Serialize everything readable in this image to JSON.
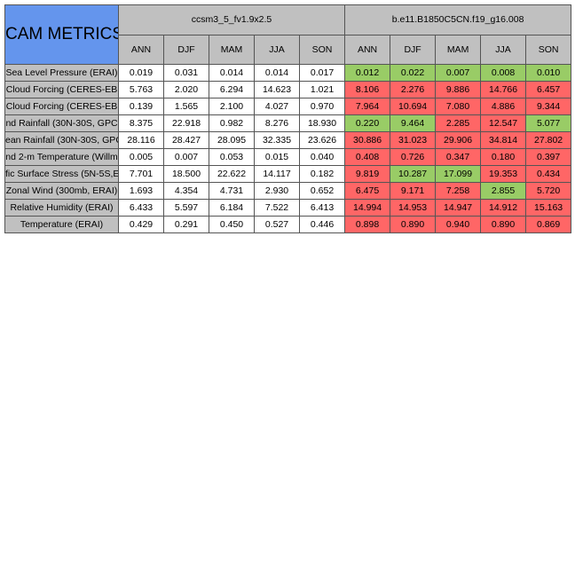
{
  "title": "CAM METRICS",
  "cases": [
    "ccsm3_5_fv1.9x2.5",
    "b.e11.B1850C5CN.f19_g16.008"
  ],
  "seasons": [
    "ANN",
    "DJF",
    "MAM",
    "JJA",
    "SON"
  ],
  "colors": {
    "title_bg": "#6495ed",
    "header_bg": "#c0c0c0",
    "better": "#99cc66",
    "worse": "#ff6666"
  },
  "rows": [
    {
      "label": "Sea Level Pressure (ERAI)",
      "a": [
        "0.019",
        "0.031",
        "0.014",
        "0.014",
        "0.017"
      ],
      "b": [
        "0.012",
        "0.022",
        "0.007",
        "0.008",
        "0.010"
      ],
      "status": [
        "good",
        "good",
        "good",
        "good",
        "good"
      ]
    },
    {
      "label": "Cloud Forcing (CERES-EB",
      "a": [
        "5.763",
        "2.020",
        "6.294",
        "14.623",
        "1.021"
      ],
      "b": [
        "8.106",
        "2.276",
        "9.886",
        "14.766",
        "6.457"
      ],
      "status": [
        "bad",
        "bad",
        "bad",
        "bad",
        "bad"
      ]
    },
    {
      "label": "Cloud Forcing (CERES-EB",
      "a": [
        "0.139",
        "1.565",
        "2.100",
        "4.027",
        "0.970"
      ],
      "b": [
        "7.964",
        "10.694",
        "7.080",
        "4.886",
        "9.344"
      ],
      "status": [
        "bad",
        "bad",
        "bad",
        "bad",
        "bad"
      ]
    },
    {
      "label": "nd Rainfall (30N-30S, GPC",
      "a": [
        "8.375",
        "22.918",
        "0.982",
        "8.276",
        "18.930"
      ],
      "b": [
        "0.220",
        "9.464",
        "2.285",
        "12.547",
        "5.077"
      ],
      "status": [
        "good",
        "good",
        "bad",
        "bad",
        "good"
      ]
    },
    {
      "label": "ean Rainfall (30N-30S, GPC",
      "a": [
        "28.116",
        "28.427",
        "28.095",
        "32.335",
        "23.626"
      ],
      "b": [
        "30.886",
        "31.023",
        "29.906",
        "34.814",
        "27.802"
      ],
      "status": [
        "bad",
        "bad",
        "bad",
        "bad",
        "bad"
      ]
    },
    {
      "label": "nd 2-m Temperature (Willm",
      "a": [
        "0.005",
        "0.007",
        "0.053",
        "0.015",
        "0.040"
      ],
      "b": [
        "0.408",
        "0.726",
        "0.347",
        "0.180",
        "0.397"
      ],
      "status": [
        "bad",
        "bad",
        "bad",
        "bad",
        "bad"
      ]
    },
    {
      "label": "fic Surface Stress (5N-5S,E",
      "a": [
        "7.701",
        "18.500",
        "22.622",
        "14.117",
        "0.182"
      ],
      "b": [
        "9.819",
        "10.287",
        "17.099",
        "19.353",
        "0.434"
      ],
      "status": [
        "bad",
        "good",
        "good",
        "bad",
        "bad"
      ]
    },
    {
      "label": "Zonal Wind (300mb, ERAI)",
      "a": [
        "1.693",
        "4.354",
        "4.731",
        "2.930",
        "0.652"
      ],
      "b": [
        "6.475",
        "9.171",
        "7.258",
        "2.855",
        "5.720"
      ],
      "status": [
        "bad",
        "bad",
        "bad",
        "good",
        "bad"
      ]
    },
    {
      "label": "Relative Humidity (ERAI)",
      "a": [
        "6.433",
        "5.597",
        "6.184",
        "7.522",
        "6.413"
      ],
      "b": [
        "14.994",
        "14.953",
        "14.947",
        "14.912",
        "15.163"
      ],
      "status": [
        "bad",
        "bad",
        "bad",
        "bad",
        "bad"
      ]
    },
    {
      "label": "Temperature (ERAI)",
      "a": [
        "0.429",
        "0.291",
        "0.450",
        "0.527",
        "0.446"
      ],
      "b": [
        "0.898",
        "0.890",
        "0.940",
        "0.890",
        "0.869"
      ],
      "status": [
        "bad",
        "bad",
        "bad",
        "bad",
        "bad"
      ]
    }
  ]
}
